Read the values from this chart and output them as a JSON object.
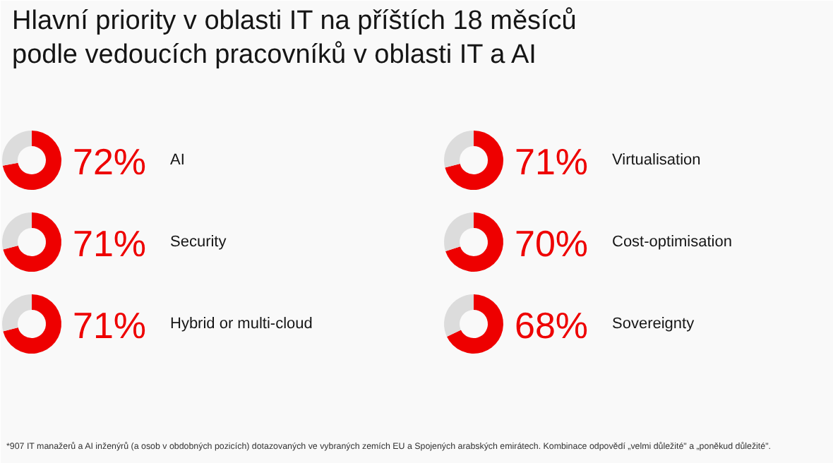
{
  "chart_data": [
    {
      "type": "donut",
      "title": "Hlavní priority v oblasti IT na příštích 18 měsíců\npodle vedoucích pracovníků v oblasti IT a AI",
      "annotations": [
        "*907 IT manažerů a AI inženýrů (a osob v obdobných pozicích) dotazovaných ve vybraných zemích EU a Spojených arabských emirátech. Kombinace odpovědí „velmi důležité\" a „poněkud důležité\"."
      ],
      "subtitle": "AI",
      "categories": [
        null,
        null
      ],
      "values": [
        72,
        28
      ],
      "colors": [
        "#ee0000",
        "#dcdcdc"
      ],
      "value_labels": [
        "72%",
        null
      ]
    },
    {
      "type": "donut",
      "subtitle": "Virtualisation",
      "categories": [
        null,
        null
      ],
      "values": [
        71,
        29
      ],
      "colors": [
        "#ee0000",
        "#dcdcdc"
      ],
      "value_labels": [
        "71%",
        null
      ]
    },
    {
      "type": "donut",
      "subtitle": "Security",
      "categories": [
        null,
        null
      ],
      "values": [
        71,
        29
      ],
      "colors": [
        "#ee0000",
        "#dcdcdc"
      ],
      "value_labels": [
        "71%",
        null
      ]
    },
    {
      "type": "donut",
      "subtitle": "Cost-optimisation",
      "categories": [
        null,
        null
      ],
      "values": [
        70,
        30
      ],
      "colors": [
        "#ee0000",
        "#dcdcdc"
      ],
      "value_labels": [
        "70%",
        null
      ]
    },
    {
      "type": "donut",
      "subtitle": "Hybrid or multi-cloud",
      "categories": [
        null,
        null
      ],
      "values": [
        71,
        29
      ],
      "colors": [
        "#ee0000",
        "#dcdcdc"
      ],
      "value_labels": [
        "71%",
        null
      ]
    },
    {
      "type": "donut",
      "subtitle": "Sovereignty",
      "categories": [
        null,
        null
      ],
      "values": [
        68,
        32
      ],
      "colors": [
        "#ee0000",
        "#dcdcdc"
      ],
      "value_labels": [
        "68%",
        null
      ]
    }
  ]
}
